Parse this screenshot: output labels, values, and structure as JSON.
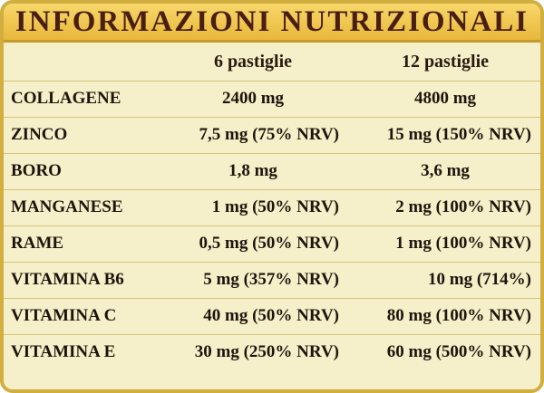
{
  "title": "INFORMAZIONI NUTRIZIONALI",
  "columns": {
    "dose1": "6 pastiglie",
    "dose2": "12 pastiglie"
  },
  "rows": [
    {
      "label": "COLLAGENE",
      "dose1": "2400 mg",
      "dose2": "4800 mg"
    },
    {
      "label": "ZINCO",
      "dose1": "7,5 mg (75% NRV)",
      "dose2": "15 mg (150% NRV)"
    },
    {
      "label": "BORO",
      "dose1": "1,8 mg",
      "dose2": "3,6 mg"
    },
    {
      "label": "MANGANESE",
      "dose1": "1 mg (50% NRV)",
      "dose2": "2 mg (100% NRV)"
    },
    {
      "label": "RAME",
      "dose1": "0,5 mg (50% NRV)",
      "dose2": "1 mg (100% NRV)"
    },
    {
      "label": "VITAMINA B6",
      "dose1": "5 mg (357% NRV)",
      "dose2": "10 mg (714%)"
    },
    {
      "label": "VITAMINA C",
      "dose1": "40 mg (50% NRV)",
      "dose2": "80 mg (100% NRV)"
    },
    {
      "label": "VITAMINA E",
      "dose1": "30 mg (250% NRV)",
      "dose2": "60 mg (500% NRV)"
    }
  ],
  "colors": {
    "title_bar": "#f0c44e",
    "title_text": "#4a1e12",
    "panel_background": "#f5f0c9",
    "border": "#d2ad3f",
    "row_divider": "#d8c27a"
  }
}
